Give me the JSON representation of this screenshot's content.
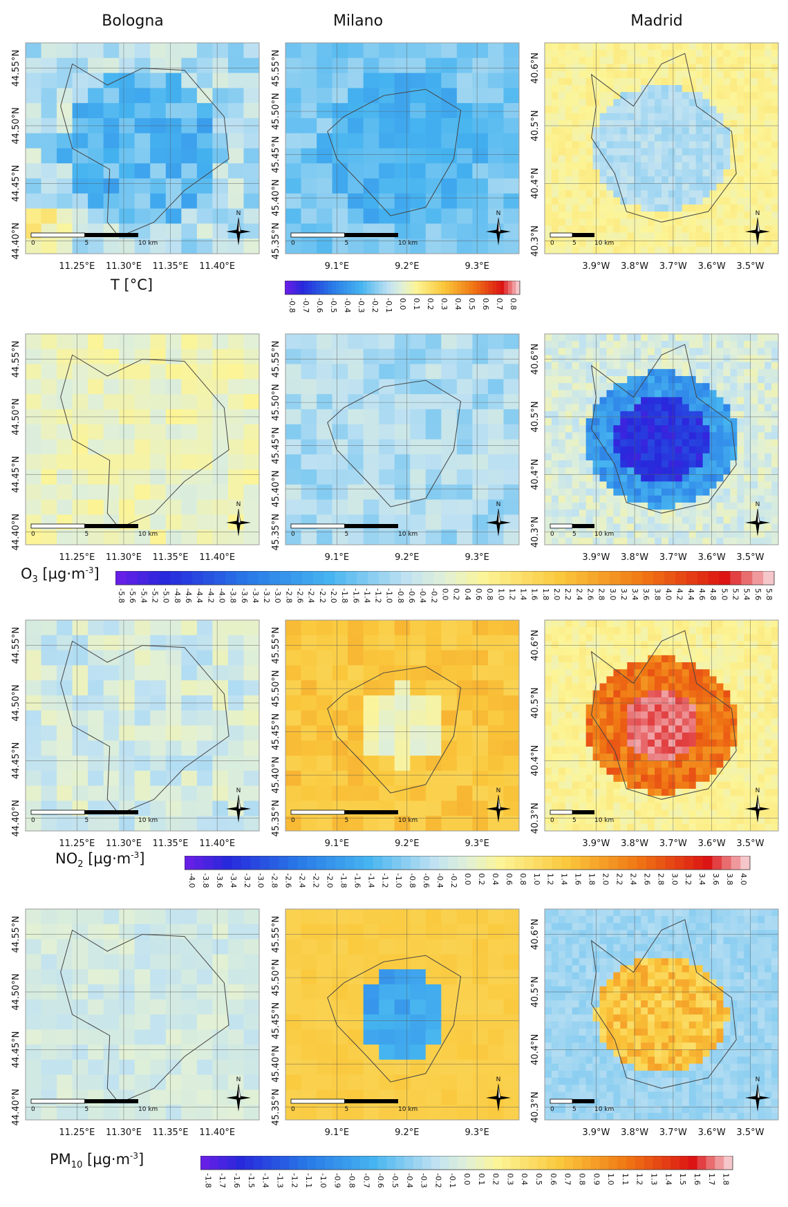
{
  "cities": [
    "Bologna",
    "Milano",
    "Madrid"
  ],
  "variables": [
    {
      "label": "T [°C]",
      "ticks": [
        "-0.8",
        "-0.7",
        "-0.6",
        "-0.5",
        "-0.4",
        "-0.3",
        "-0.2",
        "-0.1",
        "0.0",
        "0.1",
        "0.2",
        "0.3",
        "0.4",
        "0.5",
        "0.6",
        "0.7",
        "0.8"
      ],
      "range": 0.8
    },
    {
      "label": "O3 [µg·m-3]",
      "label_main": "O",
      "label_sub": "3",
      "label_unit": " [µg·m",
      "label_sup": "-3",
      "label_end": "]",
      "ticks": [
        "-5.8",
        "-5.6",
        "-5.4",
        "-5.2",
        "-5.0",
        "-4.8",
        "-4.6",
        "-4.4",
        "-4.2",
        "-4.0",
        "-3.8",
        "-3.6",
        "-3.4",
        "-3.2",
        "-3.0",
        "-2.8",
        "-2.6",
        "-2.4",
        "-2.2",
        "-2.0",
        "-1.8",
        "-1.6",
        "-1.4",
        "-1.2",
        "-1.0",
        "-0.8",
        "-0.6",
        "-0.4",
        "-0.2",
        "0.0",
        "0.2",
        "0.4",
        "0.6",
        "0.8",
        "1.0",
        "1.2",
        "1.4",
        "1.6",
        "1.8",
        "2.0",
        "2.2",
        "2.4",
        "2.6",
        "2.8",
        "3.0",
        "3.2",
        "3.4",
        "3.6",
        "3.8",
        "4.0",
        "4.2",
        "4.4",
        "4.6",
        "4.8",
        "5.0",
        "5.2",
        "5.4",
        "5.6",
        "5.8"
      ],
      "range": 5.8
    },
    {
      "label": "NO2 [µg·m-3]",
      "label_main": "NO",
      "label_sub": "2",
      "label_unit": " [µg·m",
      "label_sup": "-3",
      "label_end": "]",
      "ticks": [
        "-4.0",
        "-3.8",
        "-3.6",
        "-3.4",
        "-3.2",
        "-3.0",
        "-2.8",
        "-2.6",
        "-2.4",
        "-2.2",
        "-2.0",
        "-1.8",
        "-1.6",
        "-1.4",
        "-1.2",
        "-1.0",
        "-0.8",
        "-0.6",
        "-0.4",
        "-0.2",
        "0.0",
        "0.2",
        "0.4",
        "0.6",
        "0.8",
        "1.0",
        "1.2",
        "1.4",
        "1.6",
        "1.8",
        "2.0",
        "2.2",
        "2.4",
        "2.6",
        "2.8",
        "3.0",
        "3.2",
        "3.4",
        "3.6",
        "3.8",
        "4.0"
      ],
      "range": 4.0
    },
    {
      "label": "PM10 [µg·m-3]",
      "label_main": "PM",
      "label_sub": "10",
      "label_unit": " [µg·m",
      "label_sup": "-3",
      "label_end": "]",
      "ticks": [
        "-1.8",
        "-1.7",
        "-1.6",
        "-1.5",
        "-1.4",
        "-1.3",
        "-1.2",
        "-1.1",
        "-1.0",
        "-0.9",
        "-0.8",
        "-0.7",
        "-0.6",
        "-0.5",
        "-0.4",
        "-0.3",
        "-0.2",
        "-0.1",
        "0.0",
        "0.1",
        "0.2",
        "0.3",
        "0.4",
        "0.5",
        "0.6",
        "0.7",
        "0.8",
        "0.9",
        "1.0",
        "1.1",
        "1.2",
        "1.3",
        "1.4",
        "1.5",
        "1.6",
        "1.7",
        "1.8"
      ],
      "range": 1.8
    }
  ],
  "axes": {
    "Bologna": {
      "x": [
        "11.25°E",
        "11.30°E",
        "11.35°E",
        "11.40°E"
      ],
      "y": [
        "44.55°N",
        "44.50°N",
        "44.45°N",
        "44.40°N"
      ]
    },
    "Milano": {
      "x": [
        "9.1°E",
        "9.2°E",
        "9.3°E"
      ],
      "y": [
        "45.55°N",
        "45.50°N",
        "45.45°N",
        "45.40°N",
        "45.35°N"
      ]
    },
    "Madrid": {
      "x": [
        "3.9°W",
        "3.8°W",
        "3.7°W",
        "3.6°W",
        "3.5°W"
      ],
      "y": [
        "40.6°N",
        "40.5°N",
        "40.4°N",
        "40.3°N"
      ]
    }
  },
  "scalebar": {
    "labels": [
      "0",
      "5",
      "10 km"
    ]
  },
  "north_label": "N",
  "colors": {
    "blue_dark": "#2a1fd6",
    "blue_mid": "#3aa8ee",
    "blue_light": "#bfe0f2",
    "neutral": "#dff0d8",
    "yellow_light": "#fbf59a",
    "orange": "#f5a623",
    "red": "#e0201b",
    "pink": "#f6c6cc"
  }
}
